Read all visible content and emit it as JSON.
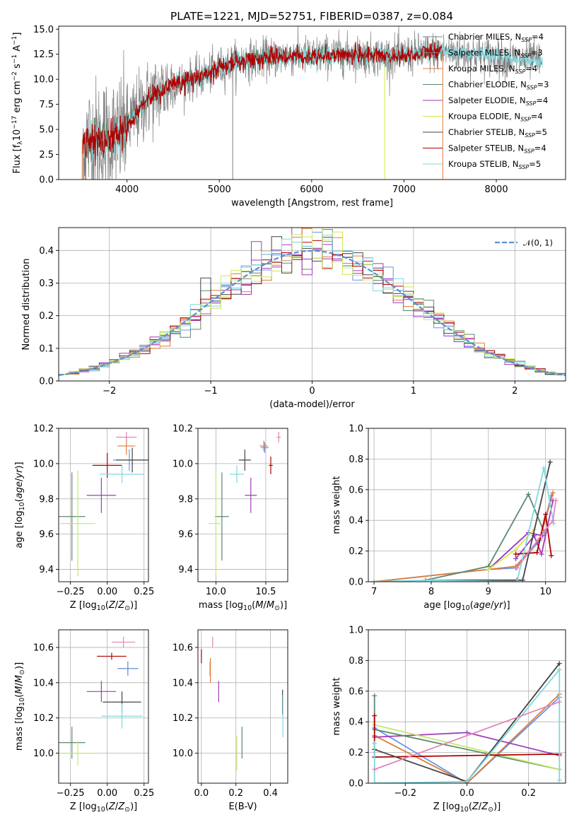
{
  "figure_title": "PLATE=1221, MJD=52751, FIBERID=0387, z=0.084",
  "colors": {
    "Chabrier MILES": "#6495ed",
    "Salpeter MILES": "#9932cc",
    "Kroupa MILES": "#e07b39",
    "Chabrier ELODIE": "#5b8a6e",
    "Salpeter ELODIE": "#a23bb8",
    "Kroupa ELODIE": "#d4e84a",
    "Chabrier STELIB": "#444444",
    "Salpeter STELIB": "#b00000",
    "Kroupa STELIB": "#7fd8e0",
    "pink": "#e385b8",
    "light_green": "#c5e86c",
    "normal_curve": "#5a8fd6"
  },
  "chart_data": [
    {
      "id": "spectrum",
      "type": "line",
      "title": "PLATE=1221, MJD=52751, FIBERID=0387, z=0.084",
      "xlabel": "wavelength [Angstrom, rest frame]",
      "ylabel": "Flux [f_λ 10^-17 erg cm^-2 s^-1 A^-1]",
      "xlim": [
        3260,
        8750
      ],
      "ylim": [
        0,
        15.3
      ],
      "xticks": [
        4000,
        5000,
        6000,
        7000,
        8000
      ],
      "yticks": [
        0.0,
        2.5,
        5.0,
        7.5,
        10.0,
        12.5,
        15.0
      ],
      "ytick_labels": [
        "0.0",
        "2.5",
        "5.0",
        "7.5",
        "10.0",
        "12.5",
        "15.0"
      ],
      "grid": false,
      "legend_position": "right",
      "legend": [
        {
          "label": "Chabrier MILES, N",
          "sub": "SSP",
          "tail": "=4"
        },
        {
          "label": "Salpeter MILES, N",
          "sub": "SSP",
          "tail": "=3"
        },
        {
          "label": "Kroupa MILES, N",
          "sub": "SSP",
          "tail": "=4"
        },
        {
          "label": "Chabrier ELODIE, N",
          "sub": "SSP",
          "tail": "=3"
        },
        {
          "label": "Salpeter ELODIE, N",
          "sub": "SSP",
          "tail": "=4"
        },
        {
          "label": "Kroupa ELODIE, N",
          "sub": "SSP",
          "tail": "=4"
        },
        {
          "label": "Chabrier STELIB, N",
          "sub": "SSP",
          "tail": "=5"
        },
        {
          "label": "Salpeter STELIB, N",
          "sub": "SSP",
          "tail": "=4"
        },
        {
          "label": "Kroupa STELIB, N",
          "sub": "SSP",
          "tail": "=5"
        }
      ],
      "continuum_x": [
        3500,
        3700,
        3900,
        4000,
        4200,
        4500,
        4800,
        5000,
        5200,
        5500,
        5800,
        6000,
        6300,
        6600,
        6900,
        7200,
        7400,
        7800,
        8200,
        8500
      ],
      "continuum_y": [
        3.8,
        3.9,
        4.2,
        5.3,
        7.8,
        9.6,
        10.2,
        11.1,
        11.8,
        12.1,
        12.4,
        12.3,
        12.5,
        12.4,
        12.3,
        12.6,
        12.8,
        12.5,
        12.0,
        11.8
      ]
    },
    {
      "id": "residuals",
      "type": "histogram",
      "xlabel": "(data-model)/error",
      "ylabel": "Normed distribution",
      "xlim": [
        -2.5,
        2.5
      ],
      "ylim": [
        0,
        0.47
      ],
      "xticks": [
        -2,
        -1,
        0,
        1,
        2
      ],
      "xtick_labels": [
        "−2",
        "−1",
        "0",
        "1",
        "2"
      ],
      "yticks": [
        0.0,
        0.1,
        0.2,
        0.3,
        0.4
      ],
      "ytick_labels": [
        "0.0",
        "0.1",
        "0.2",
        "0.3",
        "0.4"
      ],
      "grid": true,
      "legend_position": "top-right",
      "legend_label": "𝒩(0, 1)",
      "bin_width": 0.1
    },
    {
      "id": "age_vs_Z",
      "type": "errorbar",
      "xlabel": "Z [log10(Z/Z⊙)]",
      "ylabel": "age  [log10(age/yr)]",
      "xlim": [
        -0.33,
        0.28
      ],
      "ylim": [
        9.33,
        10.2
      ],
      "xticks": [
        -0.25,
        0.0,
        0.25
      ],
      "xtick_labels": [
        "−0.25",
        "0.00",
        "0.25"
      ],
      "yticks": [
        9.4,
        9.6,
        9.8,
        10.0,
        10.2
      ],
      "ytick_labels": [
        "9.4",
        "9.6",
        "9.8",
        "10.0",
        "10.2"
      ],
      "grid": true,
      "points": [
        {
          "x": 0.15,
          "y": 10.02,
          "xerr": 0.11,
          "yerr": 0.06,
          "color": "Chabrier MILES"
        },
        {
          "x": 0.13,
          "y": 10.1,
          "xerr": 0.06,
          "yerr": 0.05,
          "color": "Kroupa MILES"
        },
        {
          "x": 0.13,
          "y": 10.15,
          "xerr": 0.07,
          "yerr": 0.03,
          "color": "pink"
        },
        {
          "x": 0.0,
          "y": 9.99,
          "xerr": 0.1,
          "yerr": 0.07,
          "color": "Salpeter STELIB"
        },
        {
          "x": 0.17,
          "y": 10.02,
          "xerr": 0.11,
          "yerr": 0.07,
          "color": "Chabrier STELIB"
        },
        {
          "x": 0.1,
          "y": 9.94,
          "xerr": 0.15,
          "yerr": 0.05,
          "color": "Kroupa STELIB"
        },
        {
          "x": -0.04,
          "y": 9.82,
          "xerr": 0.1,
          "yerr": 0.1,
          "color": "Salpeter ELODIE"
        },
        {
          "x": -0.24,
          "y": 9.7,
          "xerr": 0.09,
          "yerr": 0.25,
          "color": "Chabrier ELODIE"
        },
        {
          "x": -0.2,
          "y": 9.66,
          "xerr": 0.12,
          "yerr": 0.3,
          "color": "light_green"
        }
      ]
    },
    {
      "id": "age_vs_mass",
      "type": "errorbar",
      "xlabel": "mass [log10(M/M⊙)]",
      "ylabel": "",
      "xlim": [
        9.82,
        10.72
      ],
      "ylim": [
        9.33,
        10.2
      ],
      "xticks": [
        10.0,
        10.5
      ],
      "xtick_labels": [
        "10.0",
        "10.5"
      ],
      "yticks": [
        9.4,
        9.6,
        9.8,
        10.0,
        10.2
      ],
      "ytick_labels": [
        "9.4",
        "9.6",
        "9.8",
        "10.0",
        "10.2"
      ],
      "grid": true,
      "points": [
        {
          "x": 10.29,
          "y": 10.02,
          "xerr": 0.06,
          "yerr": 0.06,
          "color": "Chabrier STELIB"
        },
        {
          "x": 10.48,
          "y": 10.1,
          "xerr": 0.04,
          "yerr": 0.03,
          "color": "Kroupa MILES"
        },
        {
          "x": 10.49,
          "y": 10.09,
          "xerr": 0.04,
          "yerr": 0.03,
          "color": "Chabrier MILES"
        },
        {
          "x": 10.63,
          "y": 10.15,
          "xerr": 0.02,
          "yerr": 0.03,
          "color": "pink"
        },
        {
          "x": 10.55,
          "y": 9.99,
          "xerr": 0.02,
          "yerr": 0.05,
          "color": "Salpeter STELIB"
        },
        {
          "x": 10.21,
          "y": 9.94,
          "xerr": 0.07,
          "yerr": 0.05,
          "color": "Kroupa STELIB"
        },
        {
          "x": 10.35,
          "y": 9.82,
          "xerr": 0.06,
          "yerr": 0.1,
          "color": "Salpeter ELODIE"
        },
        {
          "x": 10.06,
          "y": 9.7,
          "xerr": 0.07,
          "yerr": 0.25,
          "color": "Chabrier ELODIE"
        },
        {
          "x": 10.0,
          "y": 9.66,
          "xerr": 0.07,
          "yerr": 0.3,
          "color": "light_green"
        }
      ]
    },
    {
      "id": "mass_weight_vs_age",
      "type": "line",
      "xlabel": "age  [log10(age/yr)]",
      "ylabel": "mass weight",
      "xlim": [
        6.9,
        10.35
      ],
      "ylim": [
        0,
        1.0
      ],
      "xticks": [
        7,
        8,
        9,
        10
      ],
      "xtick_labels": [
        "7",
        "8",
        "9",
        "10"
      ],
      "yticks": [
        0.0,
        0.2,
        0.4,
        0.6,
        0.8,
        1.0
      ],
      "ytick_labels": [
        "0.0",
        "0.2",
        "0.4",
        "0.6",
        "0.8",
        "1.0"
      ],
      "grid": true,
      "series": [
        {
          "color": "Chabrier MILES",
          "x": [
            7.0,
            9.0,
            9.48,
            9.9,
            10.1
          ],
          "y": [
            0.0,
            0.08,
            0.09,
            0.27,
            0.56
          ]
        },
        {
          "color": "Salpeter MILES",
          "x": [
            9.0,
            9.7,
            9.95
          ],
          "y": [
            0.08,
            0.32,
            0.3
          ]
        },
        {
          "color": "Kroupa MILES",
          "x": [
            7.0,
            9.0,
            9.48,
            9.9,
            10.13
          ],
          "y": [
            0.0,
            0.08,
            0.1,
            0.28,
            0.58
          ]
        },
        {
          "color": "Chabrier ELODIE",
          "x": [
            7.9,
            9.0,
            9.7,
            9.98
          ],
          "y": [
            0.01,
            0.1,
            0.57,
            0.32
          ]
        },
        {
          "color": "Salpeter ELODIE",
          "x": [
            9.48,
            9.8,
            9.93,
            10.13
          ],
          "y": [
            0.15,
            0.3,
            0.18,
            0.53
          ]
        },
        {
          "color": "Kroupa ELODIE",
          "x": [
            9.0,
            9.48,
            9.8
          ],
          "y": [
            0.08,
            0.21,
            0.34
          ]
        },
        {
          "color": "Chabrier STELIB",
          "x": [
            8.0,
            9.5,
            9.6,
            10.08
          ],
          "y": [
            0.01,
            0.01,
            0.01,
            0.78
          ]
        },
        {
          "color": "Salpeter STELIB",
          "x": [
            9.48,
            9.85,
            10.0,
            10.1
          ],
          "y": [
            0.18,
            0.19,
            0.44,
            0.17
          ]
        },
        {
          "color": "Kroupa STELIB",
          "x": [
            7.0,
            8.0,
            9.5,
            9.97,
            10.14
          ],
          "y": [
            0.0,
            0.01,
            0.0,
            0.74,
            0.38
          ]
        },
        {
          "color": "pink",
          "x": [
            9.5,
            9.98,
            10.13,
            10.18
          ],
          "y": [
            0.09,
            0.33,
            0.4,
            0.53
          ]
        }
      ]
    },
    {
      "id": "mass_vs_Z",
      "type": "errorbar",
      "xlabel": "Z [log10(Z/Z⊙)]",
      "ylabel": "mass [log10(M/M⊙)]",
      "xlim": [
        -0.33,
        0.28
      ],
      "ylim": [
        9.83,
        10.7
      ],
      "xticks": [
        -0.25,
        0.0,
        0.25
      ],
      "xtick_labels": [
        "−0.25",
        "0.00",
        "0.25"
      ],
      "yticks": [
        10.0,
        10.2,
        10.4,
        10.6
      ],
      "ytick_labels": [
        "10.0",
        "10.2",
        "10.4",
        "10.6"
      ],
      "grid": true,
      "points": [
        {
          "x": 0.11,
          "y": 10.63,
          "xerr": 0.08,
          "yerr": 0.03,
          "color": "pink"
        },
        {
          "x": 0.03,
          "y": 10.55,
          "xerr": 0.1,
          "yerr": 0.02,
          "color": "Salpeter STELIB"
        },
        {
          "x": 0.14,
          "y": 10.48,
          "xerr": 0.07,
          "yerr": 0.04,
          "color": "Kroupa MILES"
        },
        {
          "x": 0.14,
          "y": 10.48,
          "xerr": 0.07,
          "yerr": 0.04,
          "color": "Chabrier MILES"
        },
        {
          "x": -0.04,
          "y": 10.35,
          "xerr": 0.1,
          "yerr": 0.06,
          "color": "Salpeter ELODIE"
        },
        {
          "x": 0.1,
          "y": 10.29,
          "xerr": 0.13,
          "yerr": 0.06,
          "color": "Chabrier STELIB"
        },
        {
          "x": 0.1,
          "y": 10.21,
          "xerr": 0.14,
          "yerr": 0.07,
          "color": "Kroupa STELIB"
        },
        {
          "x": -0.24,
          "y": 10.06,
          "xerr": 0.09,
          "yerr": 0.09,
          "color": "Chabrier ELODIE"
        },
        {
          "x": -0.2,
          "y": 10.0,
          "xerr": 0.13,
          "yerr": 0.07,
          "color": "light_green"
        }
      ]
    },
    {
      "id": "mass_vs_ebv",
      "type": "errorbar",
      "xlabel": "E(B-V)",
      "ylabel": "",
      "xlim": [
        -0.02,
        0.5
      ],
      "ylim": [
        9.83,
        10.7
      ],
      "xticks": [
        0.0,
        0.2,
        0.4
      ],
      "xtick_labels": [
        "0.0",
        "0.2",
        "0.4"
      ],
      "yticks": [
        10.0,
        10.2,
        10.4,
        10.6
      ],
      "ytick_labels": [
        "10.0",
        "10.2",
        "10.4",
        "10.6"
      ],
      "grid": true,
      "points": [
        {
          "x": 0.0,
          "y": 10.55,
          "xerr": 0,
          "yerr": 0.04,
          "color": "Salpeter STELIB"
        },
        {
          "x": 0.065,
          "y": 10.63,
          "xerr": 0,
          "yerr": 0.03,
          "color": "pink"
        },
        {
          "x": 0.05,
          "y": 10.48,
          "xerr": 0,
          "yerr": 0.04,
          "color": "Chabrier MILES"
        },
        {
          "x": 0.052,
          "y": 10.47,
          "xerr": 0,
          "yerr": 0.07,
          "color": "Kroupa MILES"
        },
        {
          "x": 0.1,
          "y": 10.35,
          "xerr": 0,
          "yerr": 0.06,
          "color": "Salpeter ELODIE"
        },
        {
          "x": 0.235,
          "y": 10.06,
          "xerr": 0,
          "yerr": 0.09,
          "color": "Chabrier ELODIE"
        },
        {
          "x": 0.205,
          "y": 10.0,
          "xerr": 0,
          "yerr": 0.1,
          "color": "light_green"
        },
        {
          "x": 0.47,
          "y": 10.29,
          "xerr": 0,
          "yerr": 0.07,
          "color": "Chabrier STELIB"
        },
        {
          "x": 0.472,
          "y": 10.21,
          "xerr": 0,
          "yerr": 0.12,
          "color": "Kroupa STELIB"
        }
      ]
    },
    {
      "id": "mass_weight_vs_Z",
      "type": "line",
      "xlabel": "Z [log10(Z/Z⊙)]",
      "ylabel": "mass weight",
      "xlim": [
        -0.32,
        0.32
      ],
      "ylim": [
        0,
        1.0
      ],
      "xticks": [
        -0.2,
        0.0,
        0.2
      ],
      "xtick_labels": [
        "−0.2",
        "0.0",
        "0.2"
      ],
      "yticks": [
        0.0,
        0.2,
        0.4,
        0.6,
        0.8,
        1.0
      ],
      "ytick_labels": [
        "0.0",
        "0.2",
        "0.4",
        "0.6",
        "0.8",
        "1.0"
      ],
      "grid": true,
      "series": [
        {
          "color": "Chabrier MILES",
          "x": [
            -0.3,
            0.0,
            0.3
          ],
          "y": [
            0.36,
            0.0,
            0.56
          ]
        },
        {
          "color": "Kroupa MILES",
          "x": [
            -0.3,
            0.0,
            0.3
          ],
          "y": [
            0.31,
            0.0,
            0.58
          ]
        },
        {
          "color": "Salpeter ELODIE",
          "x": [
            -0.3,
            0.0,
            0.3
          ],
          "y": [
            0.3,
            0.33,
            0.18
          ]
        },
        {
          "color": "Chabrier ELODIE",
          "x": [
            -0.3,
            -0.3,
            0.3
          ],
          "y": [
            0.57,
            0.35,
            0.09
          ]
        },
        {
          "color": "light_green",
          "x": [
            -0.3,
            0.3
          ],
          "y": [
            0.38,
            0.09
          ]
        },
        {
          "color": "Salpeter STELIB",
          "x": [
            -0.3,
            -0.3,
            0.3
          ],
          "y": [
            0.44,
            0.17,
            0.19
          ]
        },
        {
          "color": "Chabrier STELIB",
          "x": [
            -0.3,
            0.0,
            0.3
          ],
          "y": [
            0.22,
            0.01,
            0.78
          ]
        },
        {
          "color": "Kroupa STELIB",
          "x": [
            -0.3,
            -0.3,
            0.0,
            0.3,
            0.3
          ],
          "y": [
            0.26,
            0.0,
            0.01,
            0.74,
            0.02
          ]
        },
        {
          "color": "pink",
          "x": [
            -0.3,
            0.3
          ],
          "y": [
            0.09,
            0.53
          ]
        }
      ]
    }
  ]
}
